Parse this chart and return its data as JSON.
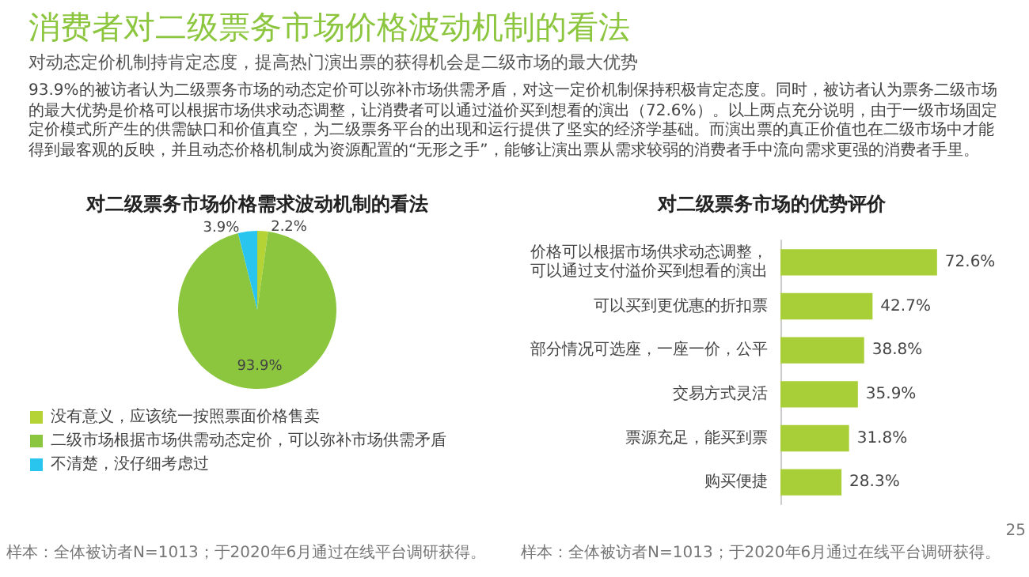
{
  "chart_data": [
    {
      "type": "other",
      "title": "消费者对二级票务市场价格波动机制的看法",
      "subtitle": "对动态定价机制持肯定态度，提高热门演出票的获得机会是二级市场的最大优势",
      "annotations": [
        "93.9%的被访者认为二级票务市场的动态定价可以弥补市场供需矛盾，对这一定价机制保持积极肯定态度。同时，被访者认为票务二级市场的最大优势是价格可以根据市场供求动态调整，让消费者可以通过溢价买到想看的演出（72.6%）。以上两点充分说明，由于一级市场固定定价模式所产生的供需缺口和价值真空，为二级票务平台的出现和运行提供了坚实的经济学基础。而演出票的真正价值也在二级市场中才能得到最客观的反映，并且动态价格机制成为资源配置的“无形之手”，能够让演出票从需求较弱的消费者手中流向需求更强的消费者手里。"
      ]
    },
    {
      "type": "pie",
      "title": "对二级票务市场价格需求波动机制的看法",
      "categories": [
        "没有意义，应该统一按照票面价格售卖",
        "二级市场根据市场供需动态定价，可以弥补市场供需矛盾",
        "不清楚，没仔细考虑过"
      ],
      "values": [
        2.2,
        93.9,
        3.9
      ],
      "colors": [
        "#b5d334",
        "#8cc63f",
        "#29c5ef"
      ],
      "value_labels": [
        "2.2%",
        "93.9%",
        "3.9%"
      ],
      "legend": "bottom left",
      "annotations": [
        "样本：全体被访者N=1013；于2020年6月通过在线平台调研获得。"
      ]
    },
    {
      "type": "bar",
      "orientation": "horizontal",
      "title": "对二级票务市场的优势评价",
      "categories": [
        "价格可以根据市场供求动态调整，可以通过支付溢价买到想看的演出",
        "可以买到更优惠的折扣票",
        "部分情况可选座，一座一价，公平",
        "交易方式灵活",
        "票源充足，能买到票",
        "购买便捷"
      ],
      "values": [
        72.6,
        42.7,
        38.8,
        35.9,
        31.8,
        28.3
      ],
      "color": "#a9cf38",
      "value_labels": [
        "72.6%",
        "42.7%",
        "38.8%",
        "35.9%",
        "31.8%",
        "28.3%"
      ],
      "tick_labels": "y",
      "annotations": [
        "样本：全体被访者N=1013；于2020年6月通过在线平台调研获得。",
        "25"
      ]
    }
  ]
}
